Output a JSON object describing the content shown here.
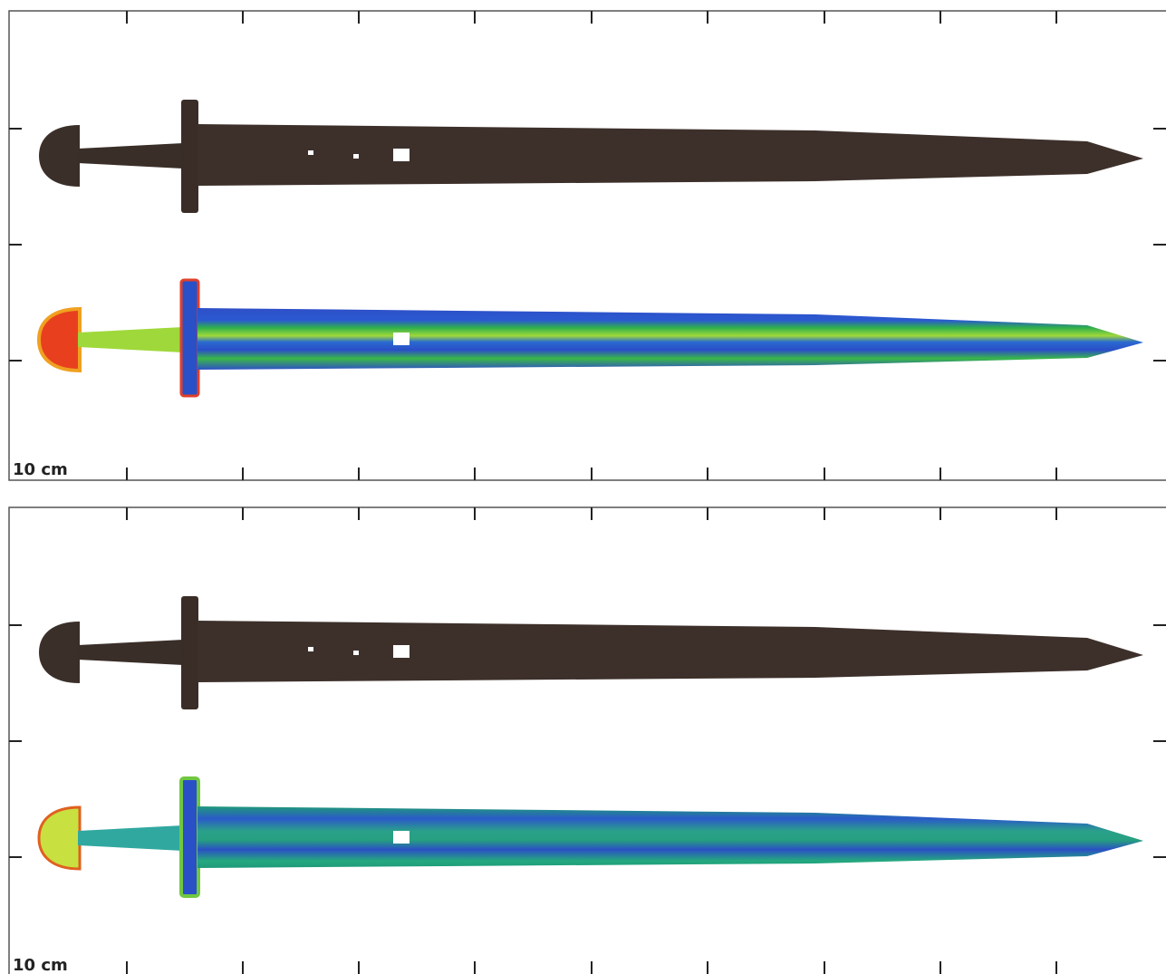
{
  "panels": [
    {
      "scale_label": "10 cm"
    },
    {
      "scale_label": "10 cm"
    }
  ]
}
